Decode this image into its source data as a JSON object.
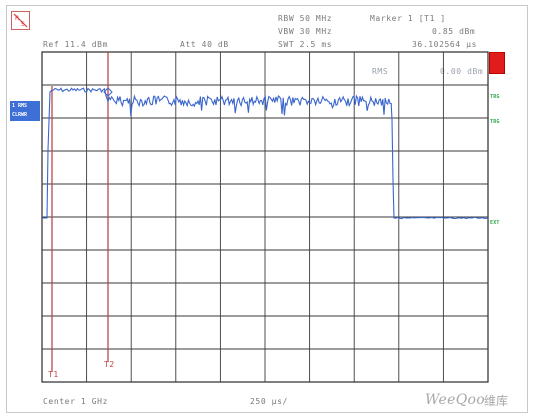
{
  "header": {
    "rbw": "RBW 50 MHz",
    "vbw": "VBW 30 MHz",
    "swt": "SWT 2.5 ms",
    "marker_title": "Marker 1 [T1 ]",
    "marker_level": "0.85 dBm",
    "marker_time": "36.102564 µs",
    "ref_level": "Ref  11.4 dBm",
    "attenuation": "Att   40 dB",
    "meas_label": "RMS",
    "meas_value": "0.00 dBm"
  },
  "trace_label": {
    "line1": "1 RMS",
    "line2": "CLRWR"
  },
  "side_labels": {
    "trg": "TRG",
    "trg2": "TRG",
    "ext": "EXT"
  },
  "markers": {
    "t1": "T1",
    "t2": "T2"
  },
  "footer": {
    "center": "Center 1 GHz",
    "span": "250 µs/"
  },
  "watermark": {
    "text": "WeeQoo",
    "cn": "维库"
  },
  "colors": {
    "trace": "#3a66cc",
    "marker_line": "#c04848",
    "grid": "#2a2a2a",
    "softkey_red": "#e21c1c",
    "side_green": "#2ea84a"
  }
}
